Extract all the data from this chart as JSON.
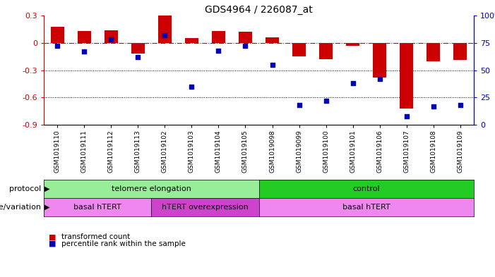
{
  "title": "GDS4964 / 226087_at",
  "samples": [
    "GSM1019110",
    "GSM1019111",
    "GSM1019112",
    "GSM1019113",
    "GSM1019102",
    "GSM1019103",
    "GSM1019104",
    "GSM1019105",
    "GSM1019098",
    "GSM1019099",
    "GSM1019100",
    "GSM1019101",
    "GSM1019106",
    "GSM1019107",
    "GSM1019108",
    "GSM1019109"
  ],
  "transformed_count": [
    0.18,
    0.13,
    0.14,
    -0.12,
    0.3,
    0.05,
    0.13,
    0.12,
    0.06,
    -0.15,
    -0.18,
    -0.03,
    -0.38,
    -0.72,
    -0.2,
    -0.19
  ],
  "percentile_rank": [
    72,
    67,
    78,
    62,
    82,
    35,
    68,
    72,
    55,
    18,
    22,
    38,
    42,
    8,
    17,
    18
  ],
  "ylim_left": [
    -0.9,
    0.3
  ],
  "ylim_right": [
    0,
    100
  ],
  "yticks_left": [
    -0.9,
    -0.6,
    -0.3,
    0.0,
    0.3
  ],
  "yticks_right": [
    0,
    25,
    50,
    75,
    100
  ],
  "protocol_groups": [
    {
      "label": "telomere elongation",
      "start": 0,
      "end": 8,
      "color": "#98EE98"
    },
    {
      "label": "control",
      "start": 8,
      "end": 16,
      "color": "#22CC22"
    }
  ],
  "genotype_groups": [
    {
      "label": "basal hTERT",
      "start": 0,
      "end": 4,
      "color": "#EE88EE"
    },
    {
      "label": "hTERT overexpression",
      "start": 4,
      "end": 8,
      "color": "#CC44CC"
    },
    {
      "label": "basal hTERT",
      "start": 8,
      "end": 16,
      "color": "#EE88EE"
    }
  ],
  "bar_color": "#CC0000",
  "dot_color": "#0000BB",
  "bar_width": 0.5,
  "dot_size": 18,
  "hline_color": "#CC0000",
  "grid_color": "#000000",
  "bg_color": "#FFFFFF",
  "left_label_color": "#CC0000",
  "right_label_color": "#0000BB"
}
